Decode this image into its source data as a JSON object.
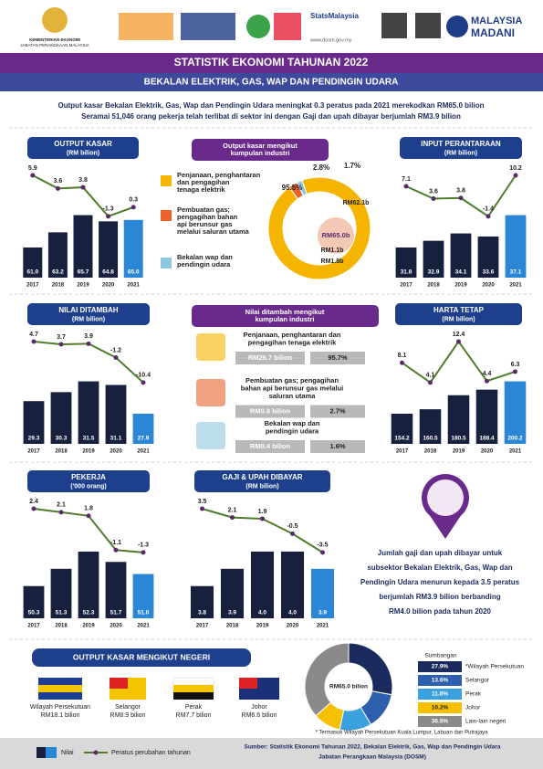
{
  "header": {
    "ministry": "KEMENTERIAN EKONOMI",
    "department": "JABATAN PERANGKAAN MALAYSIA",
    "brand": "StatsMalaysia",
    "website": "www.dosm.gov.my",
    "slogan": [
      "MALAYSIA",
      "MADANI"
    ]
  },
  "title": "STATISTIK EKONOMI TAHUNAN 2022",
  "subtitle": "BEKALAN ELEKTRIK, GAS, WAP DAN PENDINGIN UDARA",
  "summary": [
    "Output kasar Bekalan Elektrik, Gas, Wap dan Pendingin Udara meningkat 0.3 peratus pada 2021 merekodkan RM65.0 bilion",
    "Seramai 51,046 orang pekerja telah terlibat di sektor ini dengan Gaji dan upah dibayar berjumlah RM3.9 bilion"
  ],
  "chart_data": [
    {
      "type": "bar-line",
      "title": "OUTPUT KASAR",
      "subtitle": "(RM bilion)",
      "categories": [
        "2017",
        "2018",
        "2019",
        "2020",
        "2021"
      ],
      "values": [
        61.0,
        63.2,
        65.7,
        64.8,
        65.0
      ],
      "value_labels": [
        "61.0",
        "63.2",
        "65.7",
        "64.8",
        "65.0"
      ],
      "color": "#17203d",
      "highlight_color": "#2b86d6",
      "line": {
        "values": [
          5.9,
          3.6,
          3.8,
          -1.3,
          0.3
        ],
        "color": "#4f7d2c"
      }
    },
    {
      "type": "bar-line",
      "title": "INPUT PERANTARAAN",
      "subtitle": "(RM bilion)",
      "categories": [
        "2017",
        "2018",
        "2019",
        "2020",
        "2021"
      ],
      "values": [
        31.8,
        32.9,
        34.1,
        33.6,
        37.1
      ],
      "value_labels": [
        "31.8",
        "32.9",
        "34.1",
        "33.6",
        "37.1"
      ],
      "color": "#17203d",
      "highlight_color": "#2b86d6",
      "line": {
        "values": [
          7.1,
          3.6,
          3.8,
          -1.4,
          10.2
        ],
        "color": "#4f7d2c"
      }
    },
    {
      "type": "bar-line",
      "title": "NILAI DITAMBAH",
      "subtitle": "(RM bilion)",
      "categories": [
        "2017",
        "2018",
        "2019",
        "2020",
        "2021"
      ],
      "values": [
        29.3,
        30.3,
        31.5,
        31.1,
        27.9
      ],
      "value_labels": [
        "29.3",
        "30.3",
        "31.5",
        "31.1",
        "27.9"
      ],
      "color": "#17203d",
      "highlight_color": "#2b86d6",
      "line": {
        "values": [
          4.7,
          3.7,
          3.9,
          -1.2,
          -10.4
        ],
        "color": "#4f7d2c"
      }
    },
    {
      "type": "bar-line",
      "title": "HARTA TETAP",
      "subtitle": "(RM bilion)",
      "categories": [
        "2017",
        "2018",
        "2019",
        "2020",
        "2021"
      ],
      "values": [
        154.2,
        160.5,
        180.5,
        188.4,
        200.2
      ],
      "value_labels": [
        "154.2",
        "160.5",
        "180.5",
        "188.4",
        "200.2"
      ],
      "color": "#17203d",
      "highlight_color": "#2b86d6",
      "line": {
        "values": [
          8.1,
          4.1,
          12.4,
          4.4,
          6.3
        ],
        "color": "#4f7d2c"
      }
    },
    {
      "type": "bar-line",
      "title": "PEKERJA",
      "subtitle": "('000 orang)",
      "categories": [
        "2017",
        "2018",
        "2019",
        "2020",
        "2021"
      ],
      "values": [
        50.3,
        51.3,
        52.3,
        51.7,
        51.0
      ],
      "value_labels": [
        "50.3",
        "51.3",
        "52.3",
        "51.7",
        "51.0"
      ],
      "color": "#17203d",
      "highlight_color": "#2b86d6",
      "line": {
        "values": [
          2.4,
          2.1,
          1.8,
          -1.1,
          -1.3
        ],
        "color": "#4f7d2c"
      }
    },
    {
      "type": "bar-line",
      "title": "GAJI & UPAH DIBAYAR",
      "subtitle": "(RM bilion)",
      "categories": [
        "2017",
        "2018",
        "2019",
        "2020",
        "2021"
      ],
      "values": [
        3.8,
        3.9,
        4.0,
        4.0,
        3.9
      ],
      "value_labels": [
        "3.8",
        "3.9",
        "4.0",
        "4.0",
        "3.9"
      ],
      "color": "#17203d",
      "highlight_color": "#2b86d6",
      "line": {
        "values": [
          3.5,
          2.1,
          1.9,
          -0.5,
          -3.5
        ],
        "color": "#4f7d2c"
      }
    },
    {
      "type": "pie",
      "title": [
        "Output kasar mengikut",
        "kumpulan industri"
      ],
      "categories": [
        [
          "Penjanaan, penghantaran",
          "dan pengagihan",
          "tenaga elektrik"
        ],
        [
          "Pembuatan gas;",
          "pengagihan bahan",
          "api berunsur gas",
          "melalui saluran utama"
        ],
        [
          "Bekalan wap dan",
          "pendingin udara"
        ]
      ],
      "values": [
        95.5,
        2.8,
        1.7
      ],
      "value_labels": [
        "95.5%",
        "2.8%",
        "1.7%"
      ],
      "amount_labels": [
        "RM62.1b",
        "RM1.8b",
        "RM1.1b"
      ],
      "total_label": "RM65.0b",
      "colors": [
        "#f5b400",
        "#e9622b",
        "#8fc6e0"
      ]
    },
    {
      "type": "pie",
      "title": "Sumbangan",
      "categories": [
        "*Wilayah Persekutuan",
        "Selangor",
        "Perak",
        "Johor",
        "Lain-lain negeri"
      ],
      "values": [
        27.9,
        13.6,
        11.8,
        10.2,
        36.5
      ],
      "value_labels": [
        "27.9%",
        "13.6%",
        "11.8%",
        "10.2%",
        "36.5%"
      ],
      "total_label": "RM65.0 bilion",
      "colors": [
        "#1b2a5c",
        "#2d5fae",
        "#3aa0de",
        "#f5c000",
        "#8a8a8a"
      ],
      "note": "* Termasuk Wilayah Persekutuan Kuala Lumpur, Labuan dan Putrajaya"
    }
  ],
  "value_added": {
    "title": [
      "Nilai ditambah mengikut",
      "kumpulan industri"
    ],
    "items": [
      {
        "label": [
          "Penjanaan, penghantaran dan",
          "pengagihan tenaga elektrik"
        ],
        "amount": "RM26.7 bilion",
        "share": "95.7%"
      },
      {
        "label": [
          "Pembuatan gas; pengagihan",
          "bahan api berunsur gas melalui",
          "saluran utama"
        ],
        "amount": "RM0.8 bilion",
        "share": "2.7%"
      },
      {
        "label": [
          "Bekalan wap dan",
          "pendingin udara"
        ],
        "amount": "RM0.4 bilion",
        "share": "1.6%"
      }
    ]
  },
  "wage_note": [
    "Jumlah gaji dan upah dibayar untuk",
    "subsektor Bekalan Elektrik, Gas, Wap dan",
    "Pendingin Udara menurun kepada 3.5 peratus",
    "berjumlah RM3.9 bilion berbanding",
    "RM4.0 bilion pada tahun 2020"
  ],
  "states": {
    "title": "OUTPUT KASAR MENGIKUT NEGERI",
    "items": [
      {
        "name": "Wilayah Persekutuan",
        "amount": "RM18.1 bilion"
      },
      {
        "name": "Selangor",
        "amount": "RM8.9 bilion"
      },
      {
        "name": "Perak",
        "amount": "RM7.7 bilion"
      },
      {
        "name": "Johor",
        "amount": "RM6.6 bilion"
      }
    ]
  },
  "legend": [
    "Nilai",
    "Peratus perubahan tahunan"
  ],
  "source": [
    "Sumber: Statistik Ekonomi Tahunan 2022, Bekalan Elektrik, Gas, Wap dan Pendingin Udara",
    "Jabatan Perangkaan Malaysia (DOSM)"
  ]
}
